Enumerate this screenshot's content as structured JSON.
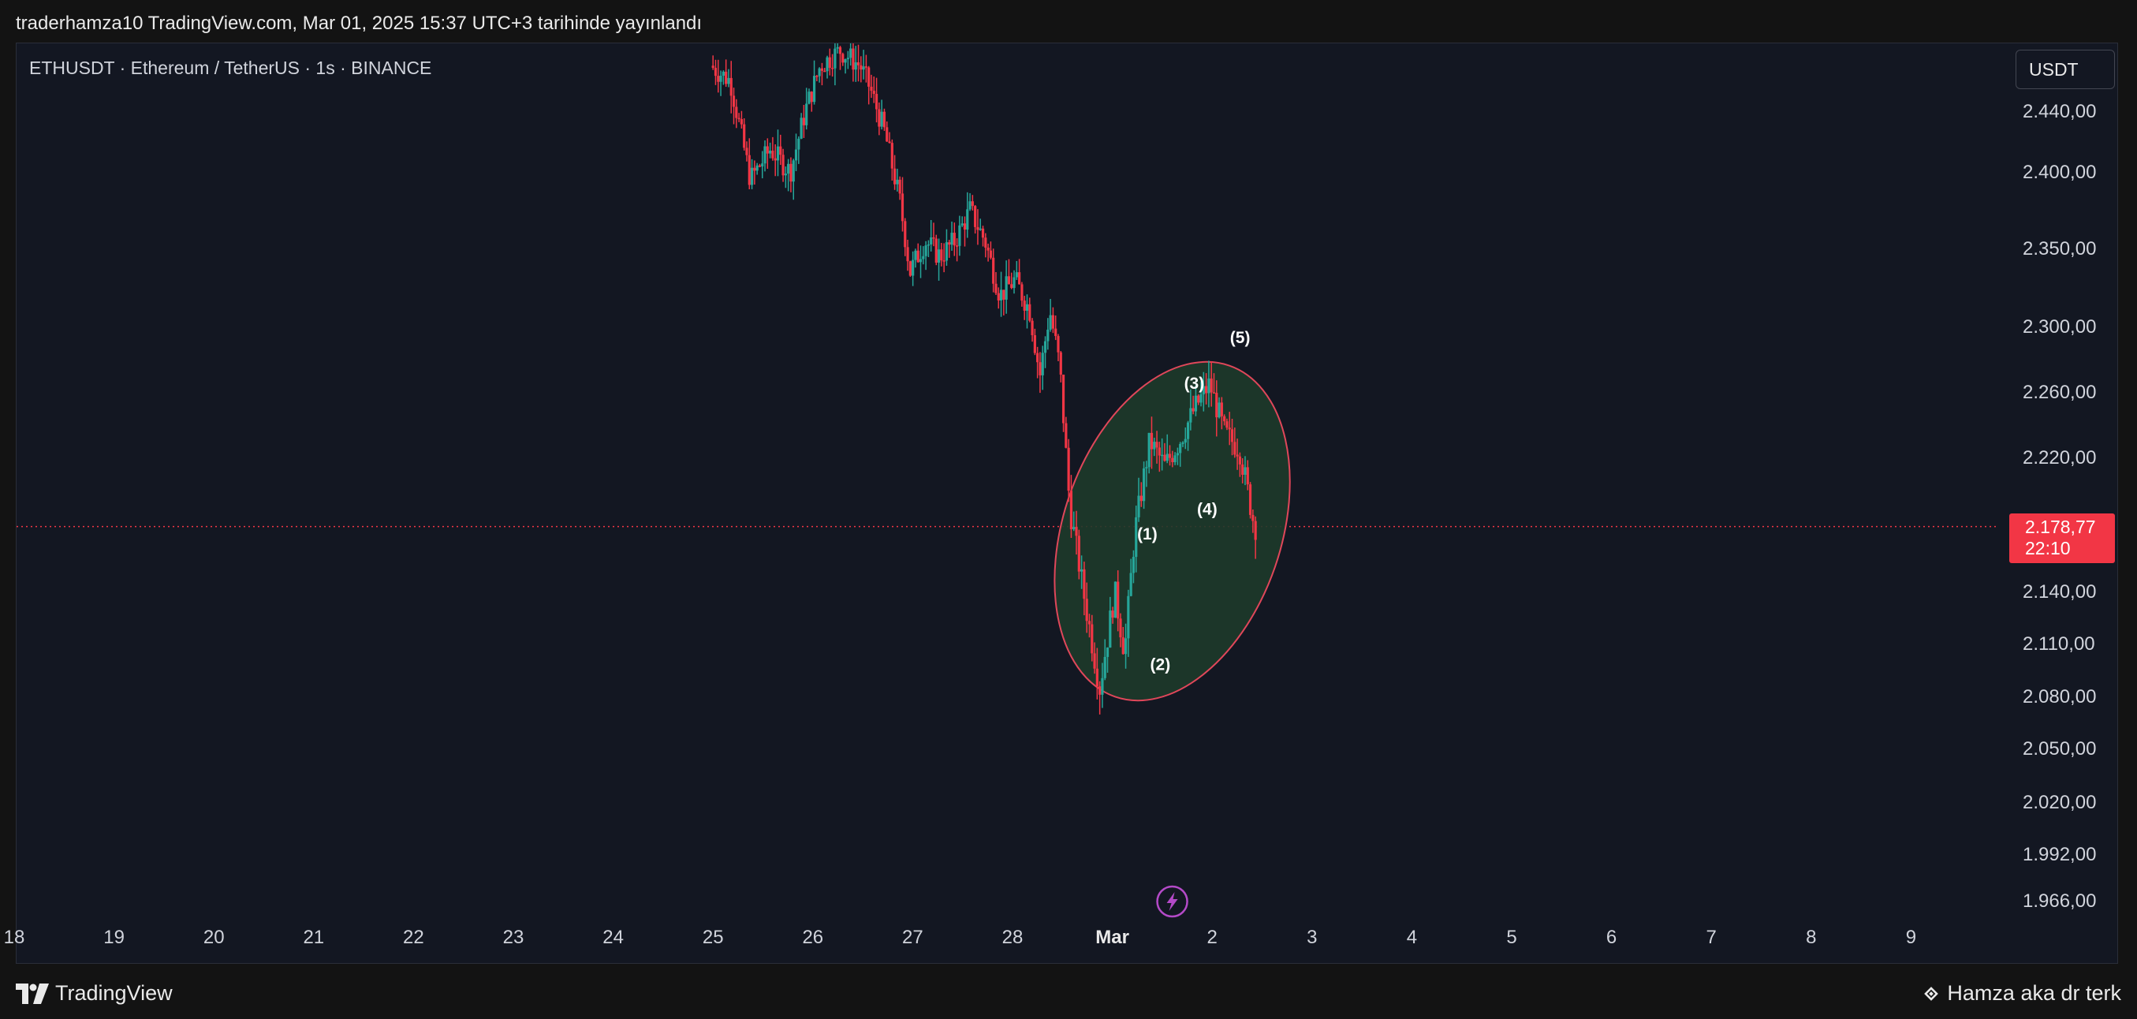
{
  "header": {
    "publish_info": "traderhamza10 TradingView.com, Mar 01, 2025 15:37 UTC+3 tarihinde yayınlandı"
  },
  "chart": {
    "symbol_label": "ETHUSDT · Ethereum / TetherUS · 1s · BINANCE",
    "currency_button": "USDT",
    "last_price": "2.178,77",
    "countdown": "22:10"
  },
  "footer": {
    "brand": "TradingView",
    "author": "Hamza aka dr terk"
  },
  "colors": {
    "background": "#131722",
    "up": "#26a69a",
    "down": "#f23645",
    "highlight_fill": "#1e3a2a",
    "highlight_stroke": "#e0475a",
    "event_icon": "#b44ac8"
  },
  "chart_data": {
    "type": "candlestick",
    "symbol": "ETHUSDT",
    "exchange": "BINANCE",
    "interval": "1s",
    "y_ticks": [
      {
        "value": 2440,
        "label": "2.440,00"
      },
      {
        "value": 2400,
        "label": "2.400,00"
      },
      {
        "value": 2350,
        "label": "2.350,00"
      },
      {
        "value": 2300,
        "label": "2.300,00"
      },
      {
        "value": 2260,
        "label": "2.260,00"
      },
      {
        "value": 2220,
        "label": "2.220,00"
      },
      {
        "value": 2140,
        "label": "2.140,00"
      },
      {
        "value": 2110,
        "label": "2.110,00"
      },
      {
        "value": 2080,
        "label": "2.080,00"
      },
      {
        "value": 2050,
        "label": "2.050,00"
      },
      {
        "value": 2020,
        "label": "2.020,00"
      },
      {
        "value": 1992,
        "label": "1.992,00"
      },
      {
        "value": 1966,
        "label": "1.966,00"
      }
    ],
    "x_ticks": [
      {
        "day": 18,
        "label": "18"
      },
      {
        "day": 19,
        "label": "19"
      },
      {
        "day": 20,
        "label": "20"
      },
      {
        "day": 21,
        "label": "21"
      },
      {
        "day": 22,
        "label": "22"
      },
      {
        "day": 23,
        "label": "23"
      },
      {
        "day": 24,
        "label": "24"
      },
      {
        "day": 25,
        "label": "25"
      },
      {
        "day": 26,
        "label": "26"
      },
      {
        "day": 27,
        "label": "27"
      },
      {
        "day": 28,
        "label": "28"
      },
      {
        "day": 29,
        "label": "Mar",
        "bold": true
      },
      {
        "day": 30,
        "label": "2"
      },
      {
        "day": 31,
        "label": "3"
      },
      {
        "day": 32,
        "label": "4"
      },
      {
        "day": 33,
        "label": "5"
      },
      {
        "day": 34,
        "label": "6"
      },
      {
        "day": 35,
        "label": "7"
      },
      {
        "day": 36,
        "label": "8"
      },
      {
        "day": 37,
        "label": "9"
      }
    ],
    "price_path": [
      [
        25.0,
        2470
      ],
      [
        25.2,
        2460
      ],
      [
        25.4,
        2395
      ],
      [
        25.6,
        2415
      ],
      [
        25.8,
        2400
      ],
      [
        25.95,
        2440
      ],
      [
        26.1,
        2470
      ],
      [
        26.3,
        2480
      ],
      [
        26.5,
        2470
      ],
      [
        26.6,
        2455
      ],
      [
        26.75,
        2425
      ],
      [
        26.9,
        2380
      ],
      [
        27.0,
        2335
      ],
      [
        27.15,
        2355
      ],
      [
        27.3,
        2345
      ],
      [
        27.45,
        2355
      ],
      [
        27.6,
        2375
      ],
      [
        27.75,
        2355
      ],
      [
        27.9,
        2320
      ],
      [
        28.05,
        2330
      ],
      [
        28.2,
        2310
      ],
      [
        28.3,
        2270
      ],
      [
        28.4,
        2310
      ],
      [
        28.5,
        2275
      ],
      [
        28.6,
        2190
      ],
      [
        28.75,
        2135
      ],
      [
        28.9,
        2085
      ],
      [
        29.05,
        2140
      ],
      [
        29.15,
        2105
      ],
      [
        29.25,
        2175
      ],
      [
        29.4,
        2230
      ],
      [
        29.55,
        2215
      ],
      [
        29.7,
        2230
      ],
      [
        29.85,
        2250
      ],
      [
        30.0,
        2265
      ],
      [
        30.15,
        2235
      ],
      [
        30.3,
        2225
      ],
      [
        30.45,
        2178.77
      ]
    ],
    "last_price": 2178.77,
    "highlight_ellipse": {
      "center_day": 29.6,
      "center_price": 2176,
      "radius_days": 1.09,
      "radius_price": 123,
      "rotation_deg": 19
    },
    "wave_labels": [
      {
        "label": "(1)",
        "day": 29.35,
        "price": 2171
      },
      {
        "label": "(2)",
        "day": 29.48,
        "price": 2095
      },
      {
        "label": "(3)",
        "day": 29.82,
        "price": 2262
      },
      {
        "label": "(4)",
        "day": 29.95,
        "price": 2186
      },
      {
        "label": "(5)",
        "day": 30.28,
        "price": 2290
      }
    ],
    "event_marker_day": 29.6
  }
}
